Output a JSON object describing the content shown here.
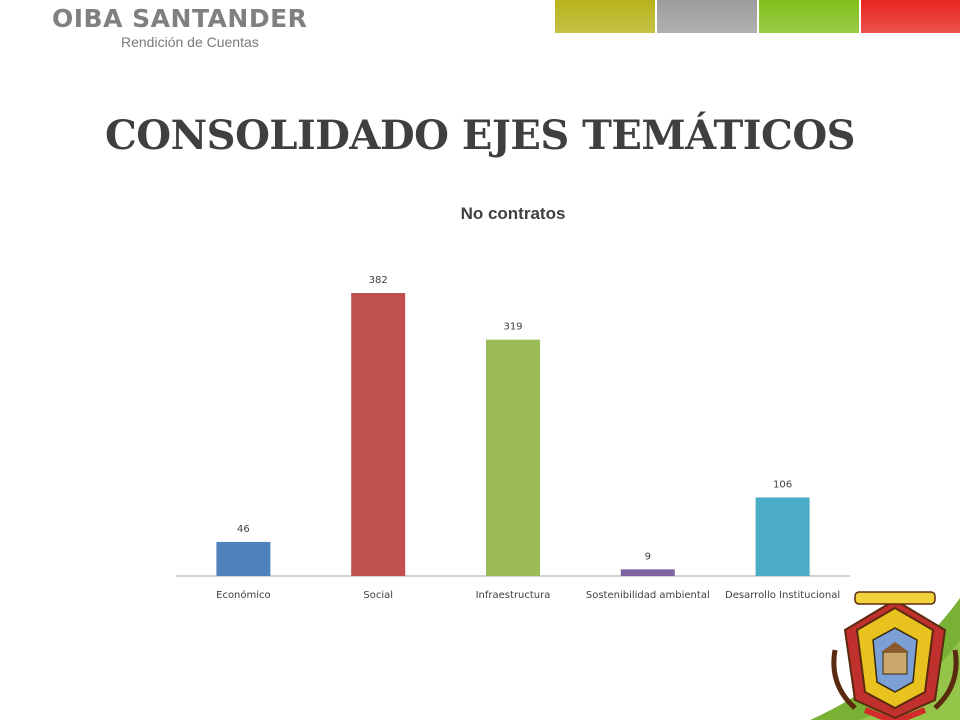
{
  "header": {
    "brand_title": "OIBA SANTANDER",
    "brand_subtitle": "Rendición de Cuentas",
    "stripe_colors": [
      "#b7b31a",
      "#9c9c9c",
      "#82c01c",
      "#e8261f"
    ]
  },
  "main_title": "CONSOLIDADO EJES TEMÁTICOS",
  "colors": {
    "accent_green": "#6aa91f",
    "title_gray": "#3f3f3f"
  },
  "chart_data": {
    "type": "bar",
    "title": "No contratos",
    "categories": [
      "Económico",
      "Social",
      "Infraestructura",
      "Sostenibilidad ambiental",
      "Desarrollo Institucional"
    ],
    "values": [
      46,
      382,
      319,
      9,
      106
    ],
    "colors": [
      "#4f81bd",
      "#c0504d",
      "#9bbb59",
      "#8064a2",
      "#4bacc6"
    ],
    "xlabel": "",
    "ylabel": "",
    "ylim": [
      0,
      382
    ],
    "grid": false,
    "legend": "none"
  },
  "emblem": {
    "icon": "coat-of-arms-icon"
  }
}
